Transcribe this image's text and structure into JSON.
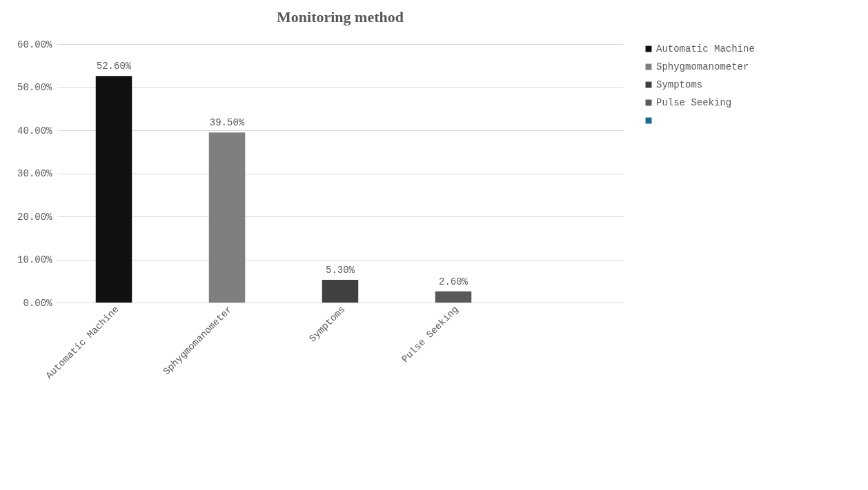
{
  "chart_data": {
    "type": "bar",
    "title": "Monitoring method",
    "categories": [
      "Automatic Machine",
      "Sphygmomanometer",
      "Symptoms",
      "Pulse Seeking",
      null
    ],
    "series": [
      {
        "name": "Automatic Machine",
        "color": "#111111",
        "values": [
          52.6,
          null,
          null,
          null,
          null
        ],
        "value_labels": [
          "52.60%",
          null,
          null,
          null,
          null
        ]
      },
      {
        "name": "Sphygmomanometer",
        "color": "#7f7f7f",
        "values": [
          null,
          39.5,
          null,
          null,
          null
        ],
        "value_labels": [
          null,
          "39.50%",
          null,
          null,
          null
        ]
      },
      {
        "name": "Symptoms",
        "color": "#404040",
        "values": [
          null,
          null,
          5.3,
          null,
          null
        ],
        "value_labels": [
          null,
          null,
          "5.30%",
          null,
          null
        ]
      },
      {
        "name": "Pulse Seeking",
        "color": "#595959",
        "values": [
          null,
          null,
          null,
          2.6,
          null
        ],
        "value_labels": [
          null,
          null,
          null,
          "2.60%",
          null
        ]
      },
      {
        "color": "#1f6a8a",
        "values": [
          null,
          null,
          null,
          null,
          null
        ]
      }
    ],
    "ylim": [
      0,
      60
    ],
    "yticks": [
      {
        "value": 0,
        "label": "0.00%"
      },
      {
        "value": 10,
        "label": "10.00%"
      },
      {
        "value": 20,
        "label": "20.00%"
      },
      {
        "value": 30,
        "label": "30.00%"
      },
      {
        "value": 40,
        "label": "40.00%"
      },
      {
        "value": 50,
        "label": "50.00%"
      },
      {
        "value": 60,
        "label": "60.00%"
      }
    ],
    "grid": "y",
    "legend": "right"
  }
}
